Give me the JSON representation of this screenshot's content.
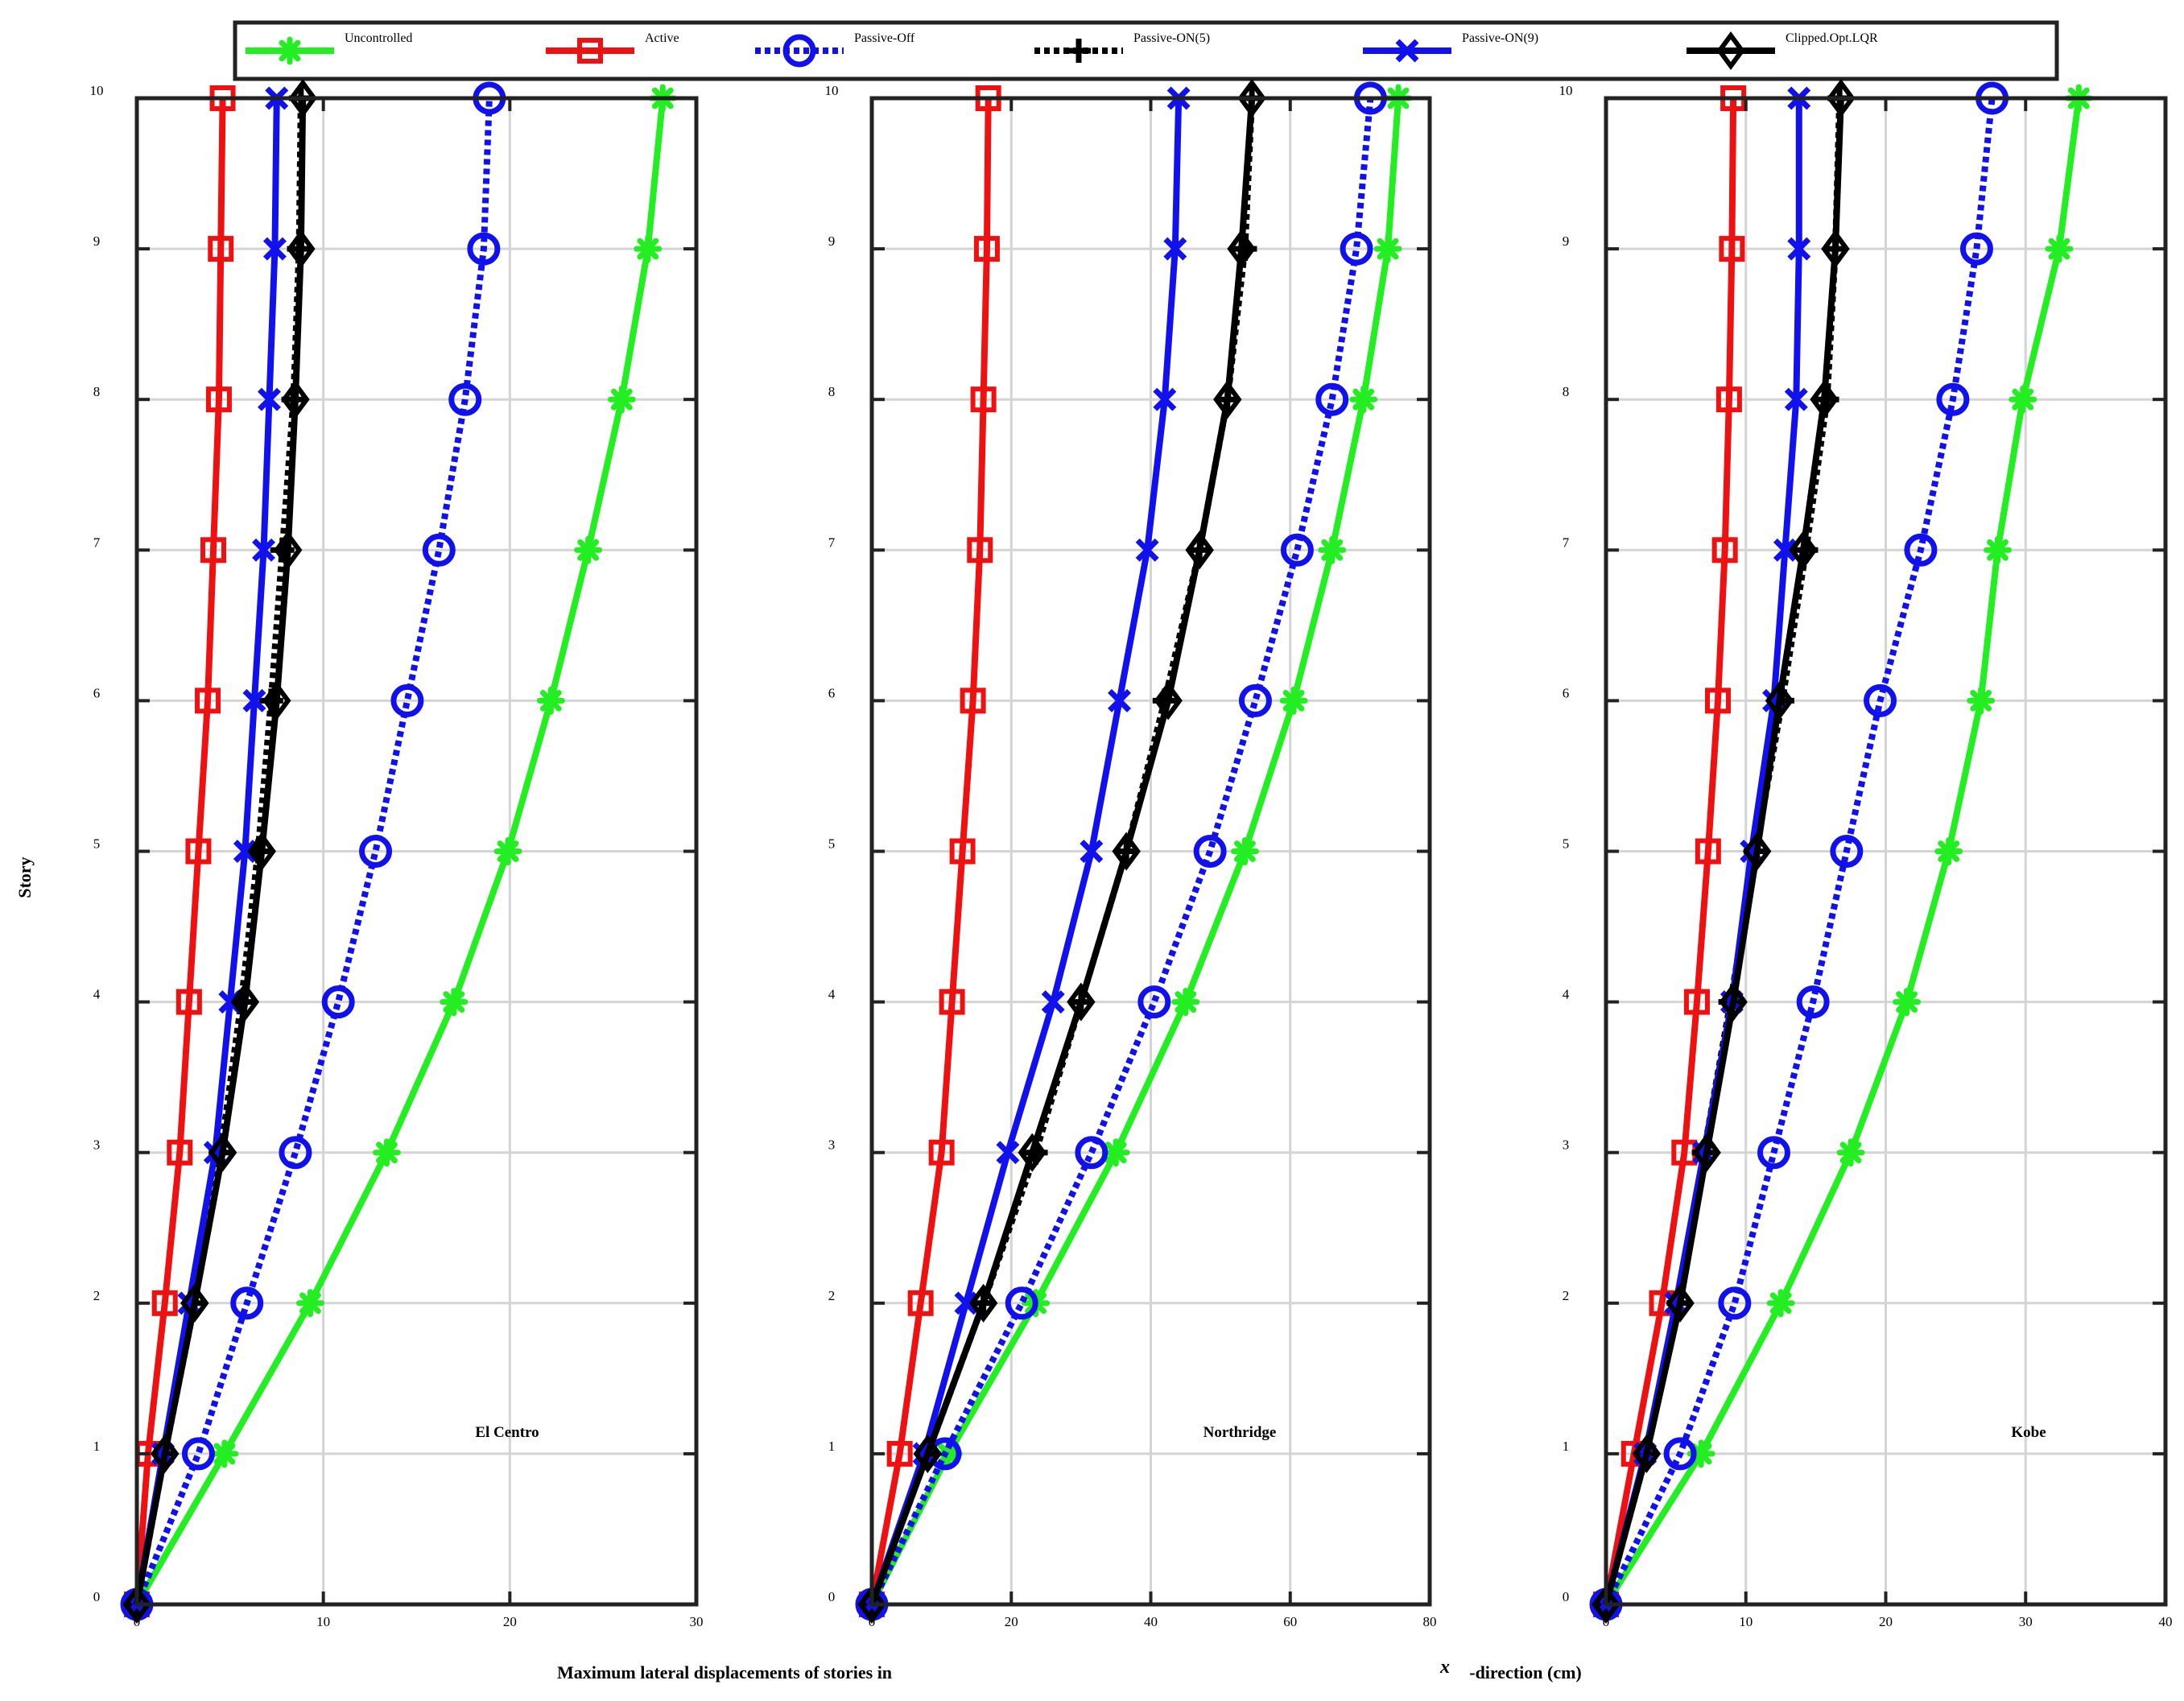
{
  "legend": {
    "entries": [
      {
        "key": "uncontrolled",
        "label": "Uncontrolled"
      },
      {
        "key": "active",
        "label": "Active"
      },
      {
        "key": "passive_off",
        "label": "Passive-Off"
      },
      {
        "key": "passive_on5",
        "label": "Passive-ON(5)"
      },
      {
        "key": "passive_on9",
        "label": "Passive-ON(9)"
      },
      {
        "key": "clipped",
        "label": "Clipped.Opt.LQR"
      }
    ]
  },
  "axis_titles": {
    "ylabel": "Story",
    "xlabel_part1": "Maximum lateral displacements of stories in",
    "xlabel_symbol": "x",
    "xlabel_part2": "-direction (cm)"
  },
  "series_styles": {
    "uncontrolled": {
      "color": "#22ee22",
      "marker": "asterisk",
      "dash": "solid"
    },
    "active": {
      "color": "#ee1111",
      "marker": "square",
      "dash": "solid"
    },
    "passive_off": {
      "color": "#1111ee",
      "marker": "circle",
      "dash": "dotted"
    },
    "passive_on5": {
      "color": "#000000",
      "marker": "plus",
      "dash": "dotted"
    },
    "passive_on9": {
      "color": "#1111ee",
      "marker": "x",
      "dash": "solid"
    },
    "clipped": {
      "color": "#000000",
      "marker": "diamond",
      "dash": "solid"
    }
  },
  "chart_data": [
    {
      "type": "line",
      "label": "El Centro",
      "xlim": [
        0,
        30
      ],
      "ylim": [
        0,
        10
      ],
      "xticks": [
        0,
        10,
        20,
        30
      ],
      "yticks": [
        0,
        1,
        2,
        3,
        4,
        5,
        6,
        7,
        8,
        9,
        10
      ],
      "grid": true,
      "y": [
        0,
        1,
        2,
        3,
        4,
        5,
        6,
        7,
        8,
        9,
        10
      ],
      "series": [
        {
          "key": "uncontrolled",
          "name": "Uncontrolled",
          "x": [
            0,
            4.7,
            9.3,
            13.4,
            17.0,
            19.9,
            22.2,
            24.2,
            26.0,
            27.4,
            28.2
          ]
        },
        {
          "key": "active",
          "name": "Active",
          "x": [
            0,
            0.6,
            1.5,
            2.3,
            2.8,
            3.3,
            3.8,
            4.1,
            4.4,
            4.5,
            4.6
          ]
        },
        {
          "key": "passive_off",
          "name": "Passive-Off",
          "x": [
            0,
            3.3,
            5.9,
            8.5,
            10.8,
            12.8,
            14.5,
            16.2,
            17.6,
            18.6,
            18.9
          ]
        },
        {
          "key": "passive_on5",
          "name": "Passive-ON(5)",
          "x": [
            0,
            1.5,
            3.1,
            4.5,
            5.6,
            6.5,
            7.2,
            7.8,
            8.4,
            8.7,
            8.8
          ]
        },
        {
          "key": "passive_on9",
          "name": "Passive-ON(9)",
          "x": [
            0,
            1.4,
            2.8,
            4.2,
            5.0,
            5.8,
            6.3,
            6.8,
            7.1,
            7.4,
            7.5
          ]
        },
        {
          "key": "clipped",
          "name": "Clipped.Opt.LQR",
          "x": [
            0,
            1.5,
            3.1,
            4.6,
            5.8,
            6.7,
            7.5,
            8.1,
            8.5,
            8.8,
            8.9
          ]
        }
      ]
    },
    {
      "type": "line",
      "label": "Northridge",
      "xlim": [
        0,
        80
      ],
      "ylim": [
        0,
        10
      ],
      "xticks": [
        0,
        20,
        40,
        60,
        80
      ],
      "yticks": [
        0,
        1,
        2,
        3,
        4,
        5,
        6,
        7,
        8,
        9,
        10
      ],
      "grid": true,
      "y": [
        0,
        1,
        2,
        3,
        4,
        5,
        6,
        7,
        8,
        9,
        10
      ],
      "series": [
        {
          "key": "uncontrolled",
          "name": "Uncontrolled",
          "x": [
            0,
            11.0,
            23.5,
            35.0,
            45.0,
            53.5,
            60.5,
            66.0,
            70.5,
            74.0,
            75.5
          ]
        },
        {
          "key": "active",
          "name": "Active",
          "x": [
            0,
            4.0,
            7.0,
            10.0,
            11.5,
            13.0,
            14.5,
            15.5,
            16.0,
            16.5,
            16.7
          ]
        },
        {
          "key": "passive_off",
          "name": "Passive-Off",
          "x": [
            0,
            10.5,
            21.5,
            31.5,
            40.5,
            48.5,
            55.0,
            61.0,
            66.0,
            69.5,
            71.5
          ]
        },
        {
          "key": "passive_on5",
          "name": "Passive-ON(5)",
          "x": [
            0,
            8.0,
            16.0,
            23.5,
            30.0,
            36.5,
            42.0,
            47.0,
            51.0,
            53.5,
            54.5
          ]
        },
        {
          "key": "passive_on9",
          "name": "Passive-ON(9)",
          "x": [
            0,
            7.5,
            13.5,
            19.5,
            26.0,
            31.5,
            35.5,
            39.5,
            42.0,
            43.5,
            44.0
          ]
        },
        {
          "key": "clipped",
          "name": "Clipped.Opt.LQR",
          "x": [
            0,
            8.0,
            16.0,
            23.0,
            30.0,
            36.5,
            42.5,
            47.0,
            51.0,
            53.0,
            54.5
          ]
        }
      ]
    },
    {
      "type": "line",
      "label": "Kobe",
      "xlim": [
        0,
        40
      ],
      "ylim": [
        0,
        10
      ],
      "xticks": [
        0,
        10,
        20,
        30,
        40
      ],
      "yticks": [
        0,
        1,
        2,
        3,
        4,
        5,
        6,
        7,
        8,
        9,
        10
      ],
      "grid": true,
      "y": [
        0,
        1,
        2,
        3,
        4,
        5,
        6,
        7,
        8,
        9,
        10
      ],
      "series": [
        {
          "key": "uncontrolled",
          "name": "Uncontrolled",
          "x": [
            0,
            6.8,
            12.5,
            17.5,
            21.5,
            24.5,
            26.8,
            28.0,
            29.8,
            32.4,
            33.8
          ]
        },
        {
          "key": "active",
          "name": "Active",
          "x": [
            0,
            2.0,
            4.0,
            5.6,
            6.5,
            7.3,
            8.0,
            8.5,
            8.8,
            9.0,
            9.1
          ]
        },
        {
          "key": "passive_off",
          "name": "Passive-Off",
          "x": [
            0,
            5.3,
            9.2,
            12.0,
            14.8,
            17.2,
            19.6,
            22.5,
            24.8,
            26.5,
            27.6
          ]
        },
        {
          "key": "passive_on5",
          "name": "Passive-ON(5)",
          "x": [
            0,
            2.9,
            5.2,
            7.0,
            8.9,
            10.7,
            12.6,
            14.3,
            15.8,
            16.4,
            16.7
          ]
        },
        {
          "key": "passive_on9",
          "name": "Passive-ON(9)",
          "x": [
            0,
            2.8,
            5.0,
            7.0,
            9.0,
            10.4,
            12.0,
            12.8,
            13.6,
            13.8,
            13.8
          ]
        },
        {
          "key": "clipped",
          "name": "Clipped.Opt.LQR",
          "x": [
            0,
            2.9,
            5.3,
            7.2,
            9.1,
            10.8,
            12.4,
            14.1,
            15.6,
            16.4,
            16.8
          ]
        }
      ]
    }
  ]
}
